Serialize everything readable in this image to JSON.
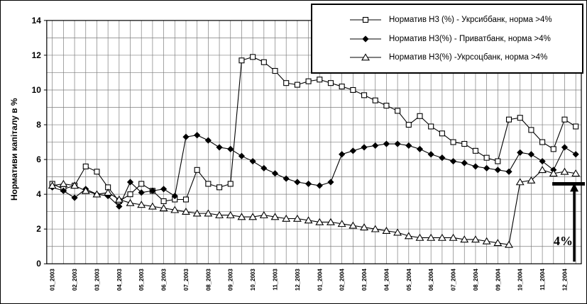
{
  "chart_data": {
    "type": "line",
    "title": "",
    "xlabel": "",
    "ylabel": "Нормативи капіталу в %",
    "ylim": [
      0,
      14
    ],
    "ytick_step": 2,
    "grid": true,
    "legend_position": "top-right",
    "points_per_label": 2,
    "x_labels": [
      "01_2003",
      "02_2003",
      "03_2003",
      "04_2003",
      "05_2003",
      "06_2003",
      "07_2003",
      "08_2003",
      "09_2003",
      "10_2003",
      "11_2003",
      "12_2003",
      "01_2004",
      "02_2004",
      "03_2004",
      "04_2004",
      "05_2004",
      "06_2004",
      "07_2004",
      "08_2004",
      "09_2004",
      "10_2004",
      "11_2004",
      "12_2004"
    ],
    "series": [
      {
        "key": "ukrsibbank",
        "name": "Норматив Н3 (%) - Укрсиббанк, норма >4%",
        "marker": "square-open",
        "color": "#000000",
        "values": [
          4.6,
          4.3,
          4.5,
          5.6,
          5.3,
          4.4,
          3.6,
          4.0,
          4.6,
          4.2,
          3.6,
          3.7,
          3.7,
          5.4,
          4.6,
          4.4,
          4.6,
          11.7,
          11.9,
          11.6,
          11.1,
          10.4,
          10.3,
          10.5,
          10.6,
          10.4,
          10.2,
          10.0,
          9.7,
          9.4,
          9.1,
          8.8,
          8.0,
          8.5,
          7.9,
          7.5,
          7.0,
          6.9,
          6.5,
          6.1,
          5.9,
          8.3,
          8.4,
          7.7,
          7.0,
          6.6,
          8.3,
          7.9
        ]
      },
      {
        "key": "privatbank",
        "name": "Норматив Н3(%) - Приватбанк, норма >4%",
        "marker": "diamond-filled",
        "color": "#000000",
        "values": [
          4.4,
          4.2,
          3.8,
          4.3,
          4.0,
          3.9,
          3.3,
          4.7,
          4.1,
          4.2,
          4.3,
          3.9,
          7.3,
          7.4,
          7.1,
          6.7,
          6.6,
          6.2,
          5.9,
          5.5,
          5.2,
          4.9,
          4.7,
          4.6,
          4.5,
          4.7,
          6.3,
          6.5,
          6.7,
          6.8,
          6.9,
          6.9,
          6.8,
          6.6,
          6.3,
          6.1,
          5.9,
          5.8,
          5.6,
          5.5,
          5.4,
          5.3,
          6.4,
          6.3,
          5.9,
          5.4,
          6.7,
          6.3
        ]
      },
      {
        "key": "ukrsotsbank",
        "name": "Норматив Н3(%) -Укрсоцбанк, норма >4%",
        "marker": "triangle-open",
        "color": "#000000",
        "values": [
          4.5,
          4.6,
          4.5,
          4.2,
          4.0,
          4.1,
          3.7,
          3.5,
          3.4,
          3.3,
          3.2,
          3.1,
          3.0,
          2.9,
          2.9,
          2.8,
          2.8,
          2.7,
          2.7,
          2.8,
          2.7,
          2.6,
          2.6,
          2.5,
          2.4,
          2.4,
          2.3,
          2.2,
          2.1,
          2.0,
          1.9,
          1.8,
          1.6,
          1.5,
          1.5,
          1.5,
          1.5,
          1.4,
          1.4,
          1.3,
          1.2,
          1.1,
          4.7,
          4.8,
          5.4,
          5.2,
          5.3,
          5.2
        ]
      }
    ],
    "annotation": {
      "text": "4%",
      "level": 4.6
    }
  }
}
